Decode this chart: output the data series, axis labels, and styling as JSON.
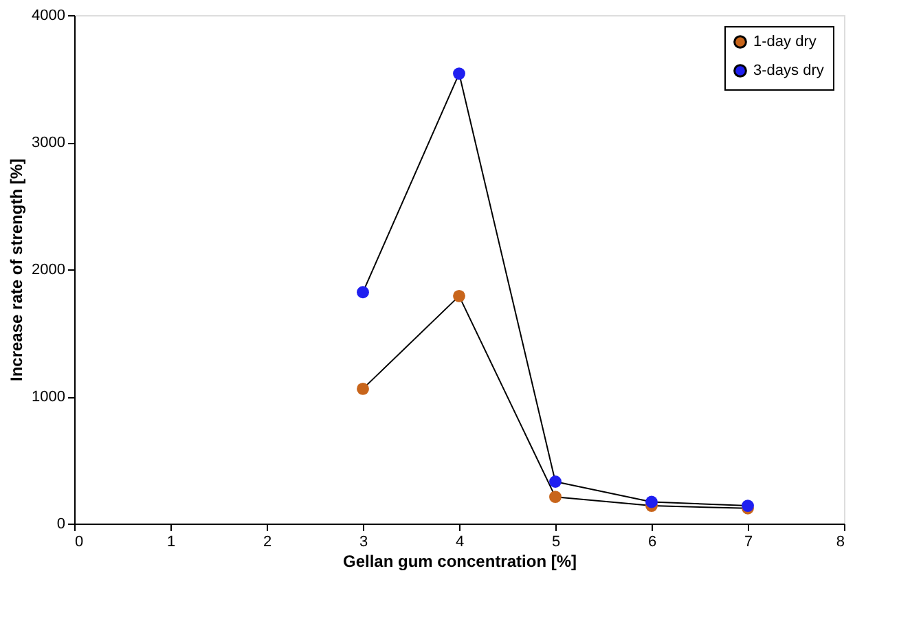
{
  "chart_data": {
    "type": "line",
    "xlabel": "Gellan gum concentration [%]",
    "ylabel": "Increase rate of strength [%]",
    "x": [
      3,
      4,
      5,
      6,
      7
    ],
    "series": [
      {
        "name": "1-day dry",
        "color": "#c8651b",
        "values": [
          1060,
          1790,
          210,
          140,
          120
        ]
      },
      {
        "name": "3-days dry",
        "color": "#1f1ff0",
        "values": [
          1820,
          3540,
          330,
          170,
          140
        ]
      }
    ],
    "xlim": [
      0,
      8
    ],
    "xticks": [
      0,
      1,
      2,
      3,
      4,
      5,
      6,
      7,
      8
    ],
    "ylim": [
      0,
      4000
    ],
    "yticks": [
      0,
      1000,
      2000,
      3000,
      4000
    ],
    "grid": false,
    "legend": "top right",
    "marker": "circle",
    "line_style": "solid"
  }
}
